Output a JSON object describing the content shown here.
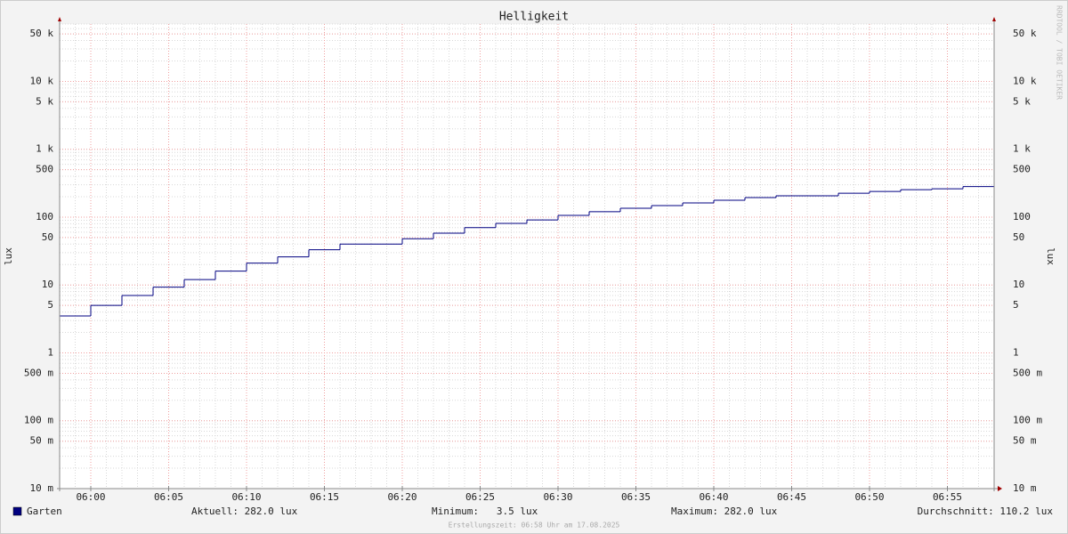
{
  "chart_data": {
    "type": "step",
    "title": "Helligkeit",
    "y_label": "lux",
    "log_y": true,
    "grid": true,
    "x": [
      "05:58",
      "06:00",
      "06:02",
      "06:04",
      "06:06",
      "06:08",
      "06:10",
      "06:12",
      "06:14",
      "06:16",
      "06:20",
      "06:22",
      "06:24",
      "06:26",
      "06:28",
      "06:30",
      "06:32",
      "06:34",
      "06:36",
      "06:38",
      "06:40",
      "06:42",
      "06:44",
      "06:48",
      "06:50",
      "06:52",
      "06:54",
      "06:56"
    ],
    "series": [
      {
        "name": "Garten",
        "color": "#000080",
        "values": [
          3.5,
          5,
          7,
          9.3,
          12,
          16,
          21,
          26,
          33,
          40,
          48,
          58,
          70,
          81,
          91,
          106,
          120,
          135,
          148,
          162,
          177,
          194,
          206,
          225,
          239,
          254,
          262,
          282
        ]
      }
    ],
    "xlim": [
      "05:58",
      "06:58"
    ],
    "xticks": [
      "06:00",
      "06:05",
      "06:10",
      "06:15",
      "06:20",
      "06:25",
      "06:30",
      "06:35",
      "06:40",
      "06:45",
      "06:50",
      "06:55"
    ],
    "ylim": [
      0.01,
      70000
    ],
    "yticks": [
      {
        "value": 0.01,
        "label": "10 m"
      },
      {
        "value": 0.05,
        "label": "50 m"
      },
      {
        "value": 0.1,
        "label": "100 m"
      },
      {
        "value": 0.5,
        "label": "500 m"
      },
      1,
      5,
      10,
      50,
      100,
      500,
      {
        "value": 1000,
        "label": "1 k"
      },
      {
        "value": 5000,
        "label": "5 k"
      },
      {
        "value": 10000,
        "label": "10 k"
      },
      {
        "value": 50000,
        "label": "50 k"
      }
    ],
    "legend_stats": [
      "Aktuell: 282.0 lux",
      "Minimum:   3.5 lux",
      "Maximum: 282.0 lux",
      "Durchschnitt: 110.2 lux"
    ],
    "footer": "Erstellungszeit: 06:58 Uhr am 17.08.2025",
    "watermark": "RRDTOOL / TOBI OETIKER"
  }
}
